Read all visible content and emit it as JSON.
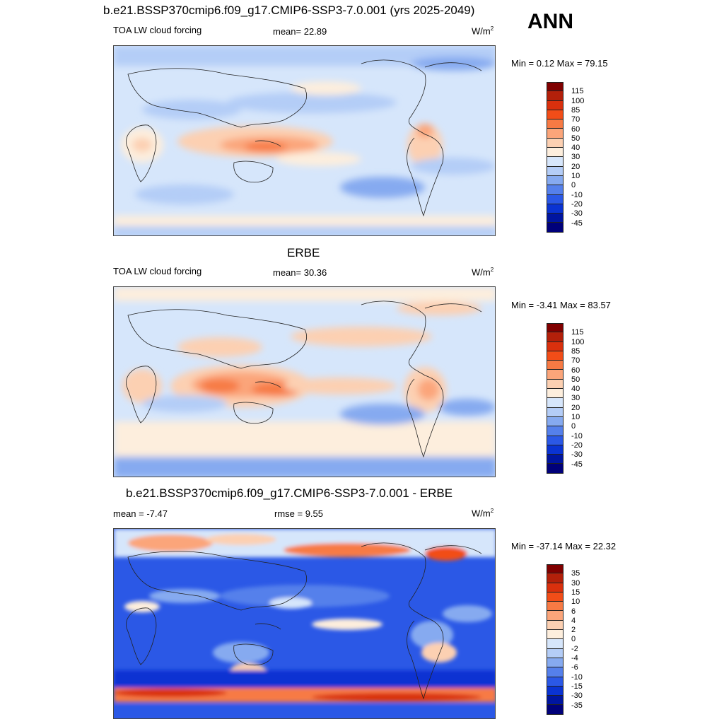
{
  "ann_label": "ANN",
  "panels": [
    {
      "title": "b.e21.BSSP370cmip6.f09_g17.CMIP6-SSP3-7.0.001 (yrs 2025-2049)",
      "left_label": "TOA LW cloud forcing",
      "center_label": "mean=  22.89",
      "units": "W/m",
      "units_sup": "2",
      "minmax": "Min =   0.12 Max =  79.15",
      "colorbar": {
        "labels": [
          "115",
          "100",
          "85",
          "70",
          "60",
          "50",
          "40",
          "30",
          "20",
          "10",
          "0",
          "-10",
          "-20",
          "-30",
          "-45"
        ],
        "colors": [
          "#800000",
          "#b3200a",
          "#d9300d",
          "#f24d18",
          "#f77a44",
          "#fba57a",
          "#fcd0b2",
          "#fdeedd",
          "#d6e6fb",
          "#b4cdf7",
          "#86aaf0",
          "#5580eb",
          "#2b58e6",
          "#0a33d2",
          "#0015a0",
          "#00007a"
        ]
      }
    },
    {
      "title": "ERBE",
      "left_label": "TOA LW cloud forcing",
      "center_label": "mean=  30.36",
      "units": "W/m",
      "units_sup": "2",
      "minmax": "Min =  -3.41 Max =  83.57",
      "colorbar": {
        "labels": [
          "115",
          "100",
          "85",
          "70",
          "60",
          "50",
          "40",
          "30",
          "20",
          "10",
          "0",
          "-10",
          "-20",
          "-30",
          "-45"
        ],
        "colors": [
          "#800000",
          "#b3200a",
          "#d9300d",
          "#f24d18",
          "#f77a44",
          "#fba57a",
          "#fcd0b2",
          "#fdeedd",
          "#d6e6fb",
          "#b4cdf7",
          "#86aaf0",
          "#5580eb",
          "#2b58e6",
          "#0a33d2",
          "#0015a0",
          "#00007a"
        ]
      }
    },
    {
      "title": "b.e21.BSSP370cmip6.f09_g17.CMIP6-SSP3-7.0.001 - ERBE",
      "left_label": "mean =  -7.47",
      "center_label": "rmse =   9.55",
      "units": "W/m",
      "units_sup": "2",
      "minmax": "Min = -37.14 Max =  22.32",
      "colorbar": {
        "labels": [
          "35",
          "30",
          "15",
          "10",
          "6",
          "4",
          "2",
          "0",
          "-2",
          "-4",
          "-6",
          "-10",
          "-15",
          "-30",
          "-35"
        ],
        "colors": [
          "#800000",
          "#b3200a",
          "#d9300d",
          "#f24d18",
          "#f77a44",
          "#fba57a",
          "#fcd0b2",
          "#fdeedd",
          "#d6e6fb",
          "#b4cdf7",
          "#86aaf0",
          "#5580eb",
          "#2b58e6",
          "#0a33d2",
          "#0015a0",
          "#00007a"
        ]
      }
    }
  ]
}
